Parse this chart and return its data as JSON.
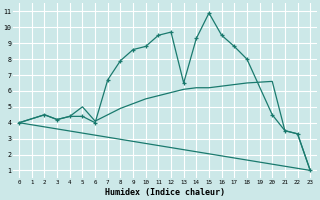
{
  "xlabel": "Humidex (Indice chaleur)",
  "bg_color": "#cce8e8",
  "grid_color": "#ffffff",
  "line_color": "#1a7a6e",
  "xlim": [
    -0.5,
    23.5
  ],
  "ylim": [
    0.5,
    11.5
  ],
  "xticks": [
    0,
    1,
    2,
    3,
    4,
    5,
    6,
    7,
    8,
    9,
    10,
    11,
    12,
    13,
    14,
    15,
    16,
    17,
    18,
    19,
    20,
    21,
    22,
    23
  ],
  "yticks": [
    1,
    2,
    3,
    4,
    5,
    6,
    7,
    8,
    9,
    10,
    11
  ],
  "line1_x": [
    0,
    2,
    3,
    4,
    5,
    6,
    7,
    8,
    9,
    10,
    11,
    12,
    13,
    14,
    15,
    16,
    17,
    18,
    20,
    21,
    22,
    23
  ],
  "line1_y": [
    4,
    4.5,
    4.2,
    4.4,
    4.4,
    4.0,
    6.7,
    7.9,
    8.6,
    8.8,
    9.5,
    9.7,
    6.5,
    9.3,
    10.9,
    9.5,
    8.8,
    8.0,
    4.5,
    3.5,
    3.3,
    1.0
  ],
  "line2_x": [
    0,
    2,
    3,
    4,
    5,
    6,
    7,
    8,
    9,
    10,
    11,
    12,
    13,
    14,
    15,
    16,
    17,
    18,
    20,
    21,
    22,
    23
  ],
  "line2_y": [
    4,
    4.5,
    4.2,
    4.4,
    5.0,
    4.1,
    4.5,
    4.9,
    5.2,
    5.5,
    5.7,
    5.9,
    6.1,
    6.2,
    6.2,
    6.3,
    6.4,
    6.5,
    6.6,
    3.5,
    3.3,
    1.0
  ],
  "line3_x": [
    0,
    23
  ],
  "line3_y": [
    4.0,
    1.0
  ]
}
